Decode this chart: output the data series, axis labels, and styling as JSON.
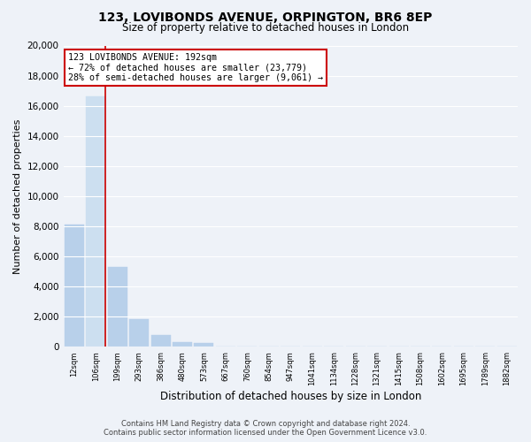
{
  "title": "123, LOVIBONDS AVENUE, ORPINGTON, BR6 8EP",
  "subtitle": "Size of property relative to detached houses in London",
  "xlabel": "Distribution of detached houses by size in London",
  "ylabel": "Number of detached properties",
  "bar_labels": [
    "12sqm",
    "106sqm",
    "199sqm",
    "293sqm",
    "386sqm",
    "480sqm",
    "573sqm",
    "667sqm",
    "760sqm",
    "854sqm",
    "947sqm",
    "1041sqm",
    "1134sqm",
    "1228sqm",
    "1321sqm",
    "1415sqm",
    "1508sqm",
    "1602sqm",
    "1695sqm",
    "1789sqm",
    "1882sqm"
  ],
  "bar_values": [
    8100,
    16600,
    5300,
    1850,
    800,
    310,
    250,
    0,
    0,
    0,
    0,
    0,
    0,
    0,
    0,
    0,
    0,
    0,
    0,
    0,
    0
  ],
  "bar_color": "#b8d0ea",
  "highlight_bar_color": "#ccdff0",
  "highlight_bar_index": 1,
  "vline_color": "#cc0000",
  "vline_x_index": 1,
  "ylim": [
    0,
    20000
  ],
  "yticks": [
    0,
    2000,
    4000,
    6000,
    8000,
    10000,
    12000,
    14000,
    16000,
    18000,
    20000
  ],
  "annotation_title": "123 LOVIBONDS AVENUE: 192sqm",
  "annotation_line1": "← 72% of detached houses are smaller (23,779)",
  "annotation_line2": "28% of semi-detached houses are larger (9,061) →",
  "annotation_box_facecolor": "#ffffff",
  "annotation_box_edgecolor": "#cc0000",
  "footer_line1": "Contains HM Land Registry data © Crown copyright and database right 2024.",
  "footer_line2": "Contains public sector information licensed under the Open Government Licence v3.0.",
  "background_color": "#eef2f8",
  "grid_color": "#ffffff",
  "title_fontsize": 10,
  "subtitle_fontsize": 8.5,
  "ylabel_fontsize": 8,
  "xlabel_fontsize": 8.5,
  "tick_fontsize": 7.5,
  "xtick_fontsize": 6
}
